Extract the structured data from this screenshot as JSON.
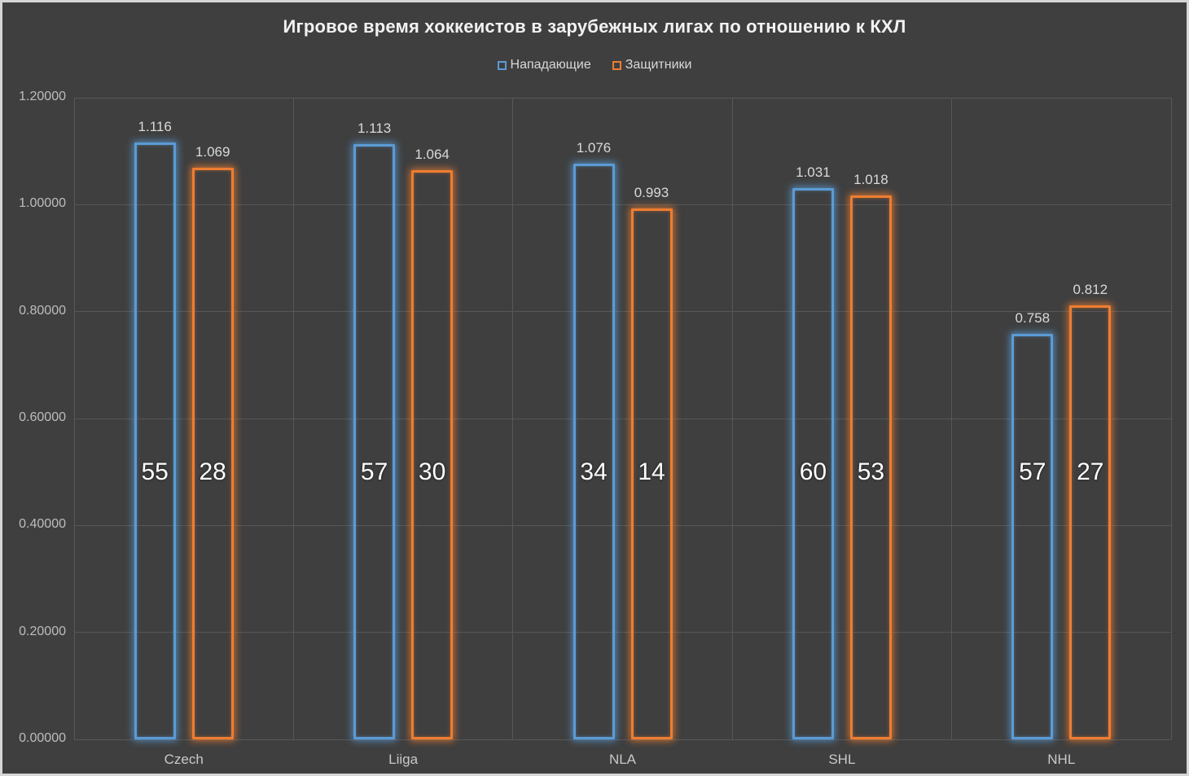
{
  "title": "Игровое время хоккеистов в зарубежных лигах по отношению к КХЛ",
  "legend": {
    "items": [
      {
        "label": "Нападающие",
        "color": "#5B9BD5"
      },
      {
        "label": "Защитники",
        "color": "#ED7D31"
      }
    ]
  },
  "colors": {
    "forwards": "#5B9BD5",
    "defenders": "#ED7D31",
    "background": "#3F3F3F",
    "gridline": "#575757",
    "axis_text": "#BDBDBD",
    "value_label_text": "#D9D9D9",
    "inner_label_text": "#FFFFFF",
    "frame_border": "#D6D6D6"
  },
  "chart_data": {
    "type": "bar",
    "title": "Игровое время хоккеистов в зарубежных лигах по отношению к КХЛ",
    "categories": [
      "Czech",
      "Liiga",
      "NLA",
      "SHL",
      "NHL"
    ],
    "series": [
      {
        "name": "Нападающие",
        "color": "#5B9BD5",
        "values": [
          1.116,
          1.113,
          1.076,
          1.031,
          0.758
        ],
        "value_labels": [
          "1.116",
          "1.113",
          "1.076",
          "1.031",
          "0.758"
        ],
        "inner_labels": [
          "55",
          "57",
          "34",
          "60",
          "57"
        ]
      },
      {
        "name": "Защитники",
        "color": "#ED7D31",
        "values": [
          1.069,
          1.064,
          0.993,
          1.018,
          0.812
        ],
        "value_labels": [
          "1.069",
          "1.064",
          "0.993",
          "1.018",
          "0.812"
        ],
        "inner_labels": [
          "28",
          "30",
          "14",
          "53",
          "27"
        ]
      }
    ],
    "xlabel": "",
    "ylabel": "",
    "ylim": [
      0.0,
      1.2
    ],
    "ytick_step": 0.2,
    "ytick_labels": [
      "0.00000",
      "0.20000",
      "0.40000",
      "0.60000",
      "0.80000",
      "1.00000",
      "1.20000"
    ],
    "grid": true,
    "legend_position": "top",
    "bar_style": "outlined-glow",
    "inner_label_axis_position": 0.5
  }
}
